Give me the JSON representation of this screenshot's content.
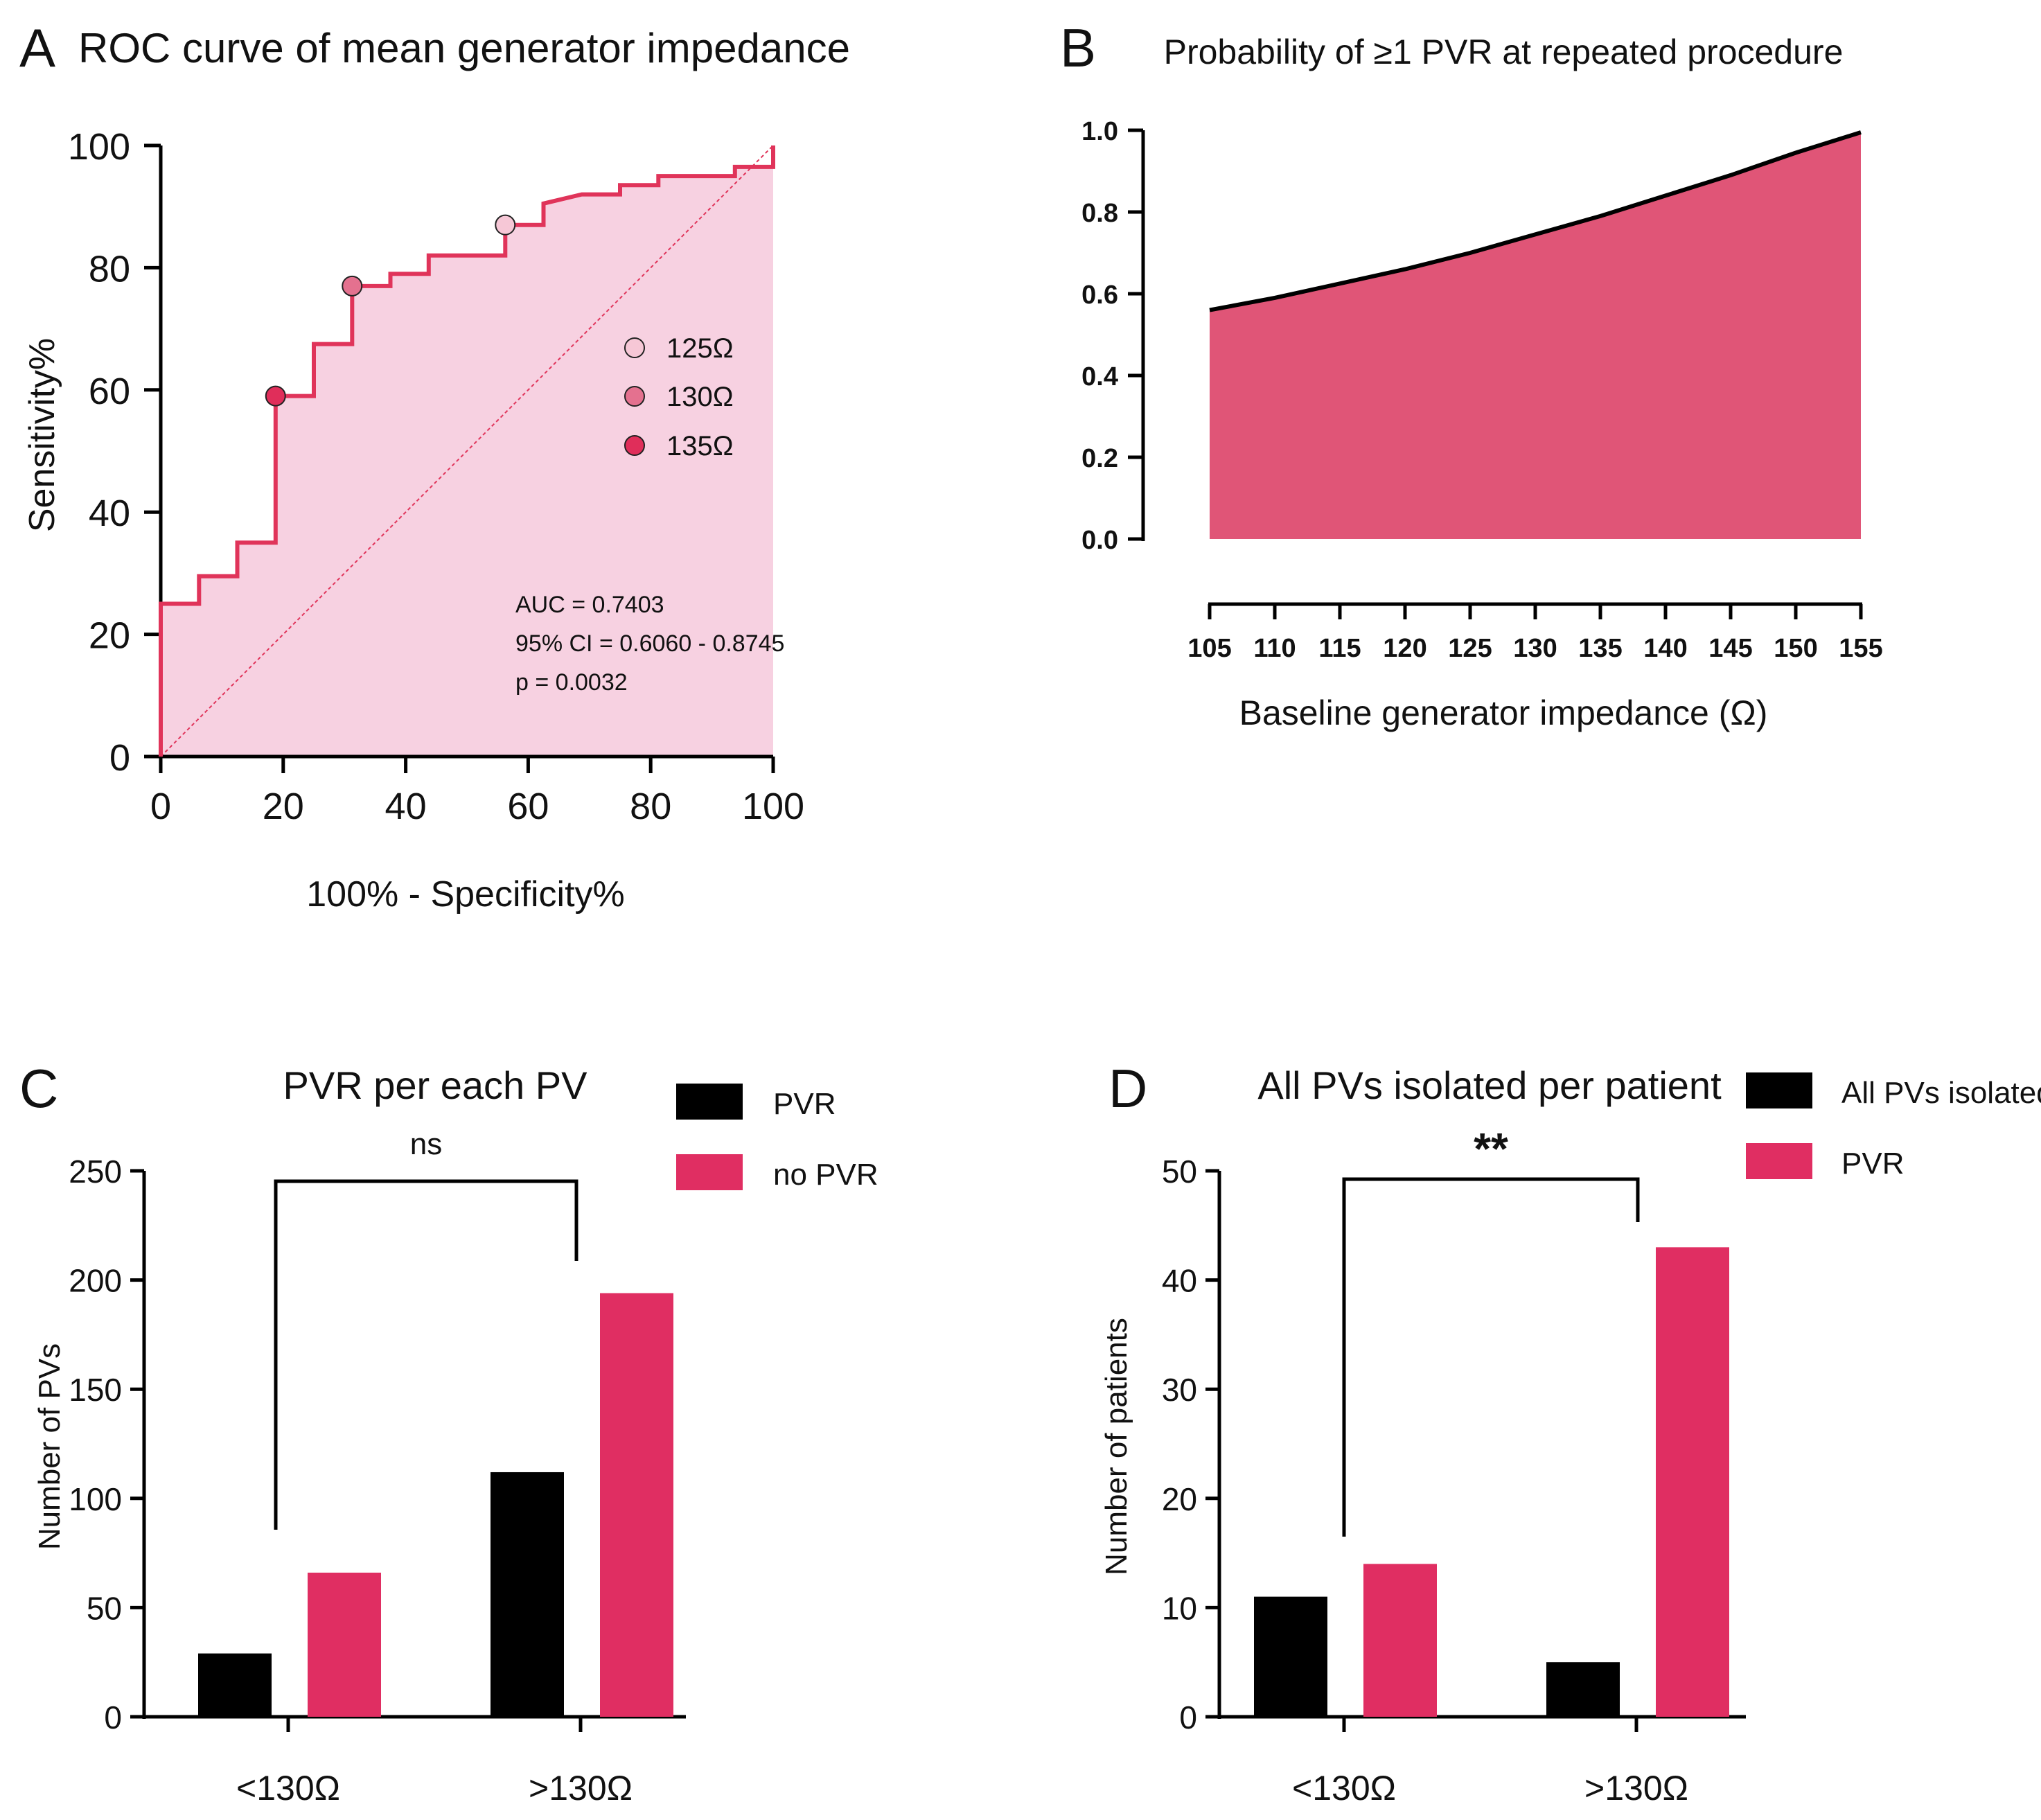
{
  "colors": {
    "roc_line": "#e0345a",
    "roc_fill": "#f7d1e1",
    "prob_fill": "#e05577",
    "black": "#000000",
    "pink": "#e02e62",
    "cut125": "#f6c7d6",
    "cut130": "#e4718f",
    "cut135": "#e02e5a"
  },
  "panels": {
    "A": {
      "letter": "A"
    },
    "B": {
      "letter": "B"
    },
    "C": {
      "letter": "C"
    },
    "D": {
      "letter": "D"
    }
  },
  "chart_data": [
    {
      "id": "A",
      "type": "line",
      "title": "ROC curve of mean generator impedance",
      "xlabel": "100% - Specificity%",
      "ylabel": "Sensitivity%",
      "xlim": [
        0,
        100
      ],
      "ylim": [
        0,
        100
      ],
      "xticks": [
        0,
        20,
        40,
        60,
        80,
        100
      ],
      "yticks": [
        0,
        20,
        40,
        60,
        80,
        100
      ],
      "roc_steps": [
        [
          0,
          0
        ],
        [
          0,
          25
        ],
        [
          6.25,
          25
        ],
        [
          6.25,
          29.5
        ],
        [
          12.5,
          29.5
        ],
        [
          12.5,
          35
        ],
        [
          18.75,
          35
        ],
        [
          18.75,
          59
        ],
        [
          25,
          59
        ],
        [
          25,
          67.5
        ],
        [
          31.25,
          67.5
        ],
        [
          31.25,
          77
        ],
        [
          37.5,
          77
        ],
        [
          37.5,
          79
        ],
        [
          43.75,
          79
        ],
        [
          43.75,
          82
        ],
        [
          56.25,
          82
        ],
        [
          56.25,
          87
        ],
        [
          62.5,
          87
        ],
        [
          62.5,
          90.5
        ],
        [
          68.75,
          92
        ],
        [
          75,
          92
        ],
        [
          75,
          93.5
        ],
        [
          81.25,
          93.5
        ],
        [
          81.25,
          95
        ],
        [
          93.75,
          95
        ],
        [
          93.75,
          96.5
        ],
        [
          100,
          96.5
        ],
        [
          100,
          100
        ]
      ],
      "reference_line": [
        [
          0,
          0
        ],
        [
          100,
          100
        ]
      ],
      "cutoff_points": [
        {
          "label": "125Ω",
          "x": 56.25,
          "y": 87
        },
        {
          "label": "130Ω",
          "x": 31.25,
          "y": 77
        },
        {
          "label": "135Ω",
          "x": 18.75,
          "y": 59
        }
      ],
      "legend": [
        "125Ω",
        "130Ω",
        "135Ω"
      ],
      "stats": [
        "AUC = 0.7403",
        "95% CI = 0.6060 - 0.8745",
        "p = 0.0032"
      ]
    },
    {
      "id": "B",
      "type": "area",
      "title": "Probability of ≥1 PVR at repeated procedure",
      "xlabel": "Baseline generator impedance (Ω)",
      "ylabel": "",
      "x": [
        105,
        110,
        115,
        120,
        125,
        130,
        135,
        140,
        145,
        150,
        155
      ],
      "y": [
        0.56,
        0.59,
        0.625,
        0.66,
        0.7,
        0.745,
        0.79,
        0.84,
        0.89,
        0.945,
        0.995
      ],
      "xticks": [
        105,
        110,
        115,
        120,
        125,
        130,
        135,
        140,
        145,
        150,
        155
      ],
      "yticks": [
        "0.0",
        "0.2",
        "0.4",
        "0.6",
        "0.8",
        "1.0"
      ],
      "ylim": [
        0,
        1.0
      ],
      "xlim": [
        105,
        155
      ]
    },
    {
      "id": "C",
      "type": "bar",
      "title": "PVR per each PV",
      "ylabel": "Number of PVs",
      "categories": [
        "<130Ω",
        ">130Ω"
      ],
      "series": [
        {
          "name": "PVR",
          "values": [
            29,
            112
          ]
        },
        {
          "name": "no PVR",
          "values": [
            66,
            194
          ]
        }
      ],
      "ylim": [
        0,
        250
      ],
      "yticks": [
        0,
        50,
        100,
        150,
        200,
        250
      ],
      "significance": "ns"
    },
    {
      "id": "D",
      "type": "bar",
      "title": "All PVs isolated per patient",
      "ylabel": "Number of patients",
      "categories": [
        "<130Ω",
        ">130Ω"
      ],
      "series": [
        {
          "name": "All PVs isolated",
          "values": [
            11,
            5
          ]
        },
        {
          "name": "PVR",
          "values": [
            14,
            43
          ]
        }
      ],
      "ylim": [
        0,
        50
      ],
      "yticks": [
        0,
        10,
        20,
        30,
        40,
        50
      ],
      "significance": "**"
    }
  ]
}
